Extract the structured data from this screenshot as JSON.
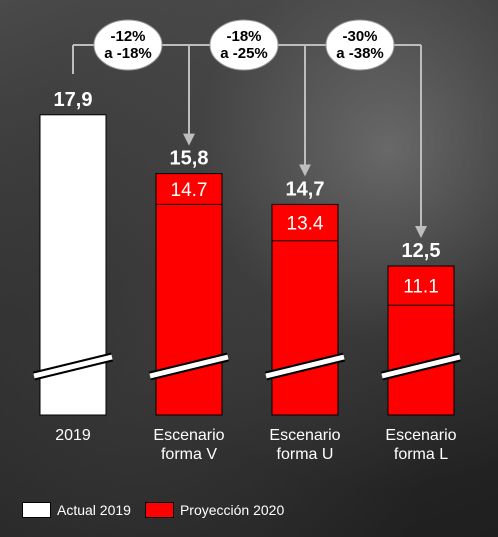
{
  "colors": {
    "actual": "#ffffff",
    "projection": "#ff0000",
    "label_text": "#ffffff",
    "connector": "#bdbdbd"
  },
  "chart_data": {
    "type": "bar",
    "title": "",
    "xlabel": "",
    "ylabel": "",
    "categories": [
      "2019",
      "Escenario forma V",
      "Escenario forma U",
      "Escenario forma L"
    ],
    "category_lines": [
      [
        "2019"
      ],
      [
        "Escenario",
        "forma V"
      ],
      [
        "Escenario",
        "forma U"
      ],
      [
        "Escenario",
        "forma L"
      ]
    ],
    "series": [
      {
        "name": "Actual 2019",
        "values": [
          17.9,
          null,
          null,
          null
        ],
        "value_labels": [
          "17,9",
          "",
          "",
          ""
        ]
      },
      {
        "name": "Proyección 2020",
        "values": [
          null,
          15.8,
          14.7,
          12.5
        ],
        "value_labels": [
          "",
          "15,8",
          "14,7",
          "12,5"
        ]
      }
    ],
    "lower_scenario_values": [
      null,
      14.7,
      13.4,
      11.1
    ],
    "lower_scenario_labels": [
      "",
      "14.7",
      "13.4",
      "11.1"
    ],
    "axis_break": true,
    "change_callouts": [
      {
        "from": 0,
        "to": 1,
        "lines": [
          "-12%",
          "a -18%"
        ]
      },
      {
        "from": 0,
        "to": 2,
        "lines": [
          "-18%",
          "a -25%"
        ]
      },
      {
        "from": 0,
        "to": 3,
        "lines": [
          "-30%",
          "a -38%"
        ]
      }
    ],
    "legend": {
      "placement": "bottom-left",
      "items": [
        {
          "label": "Actual 2019",
          "color": "#ffffff"
        },
        {
          "label": "Proyección 2020",
          "color": "#ff0000"
        }
      ]
    }
  }
}
